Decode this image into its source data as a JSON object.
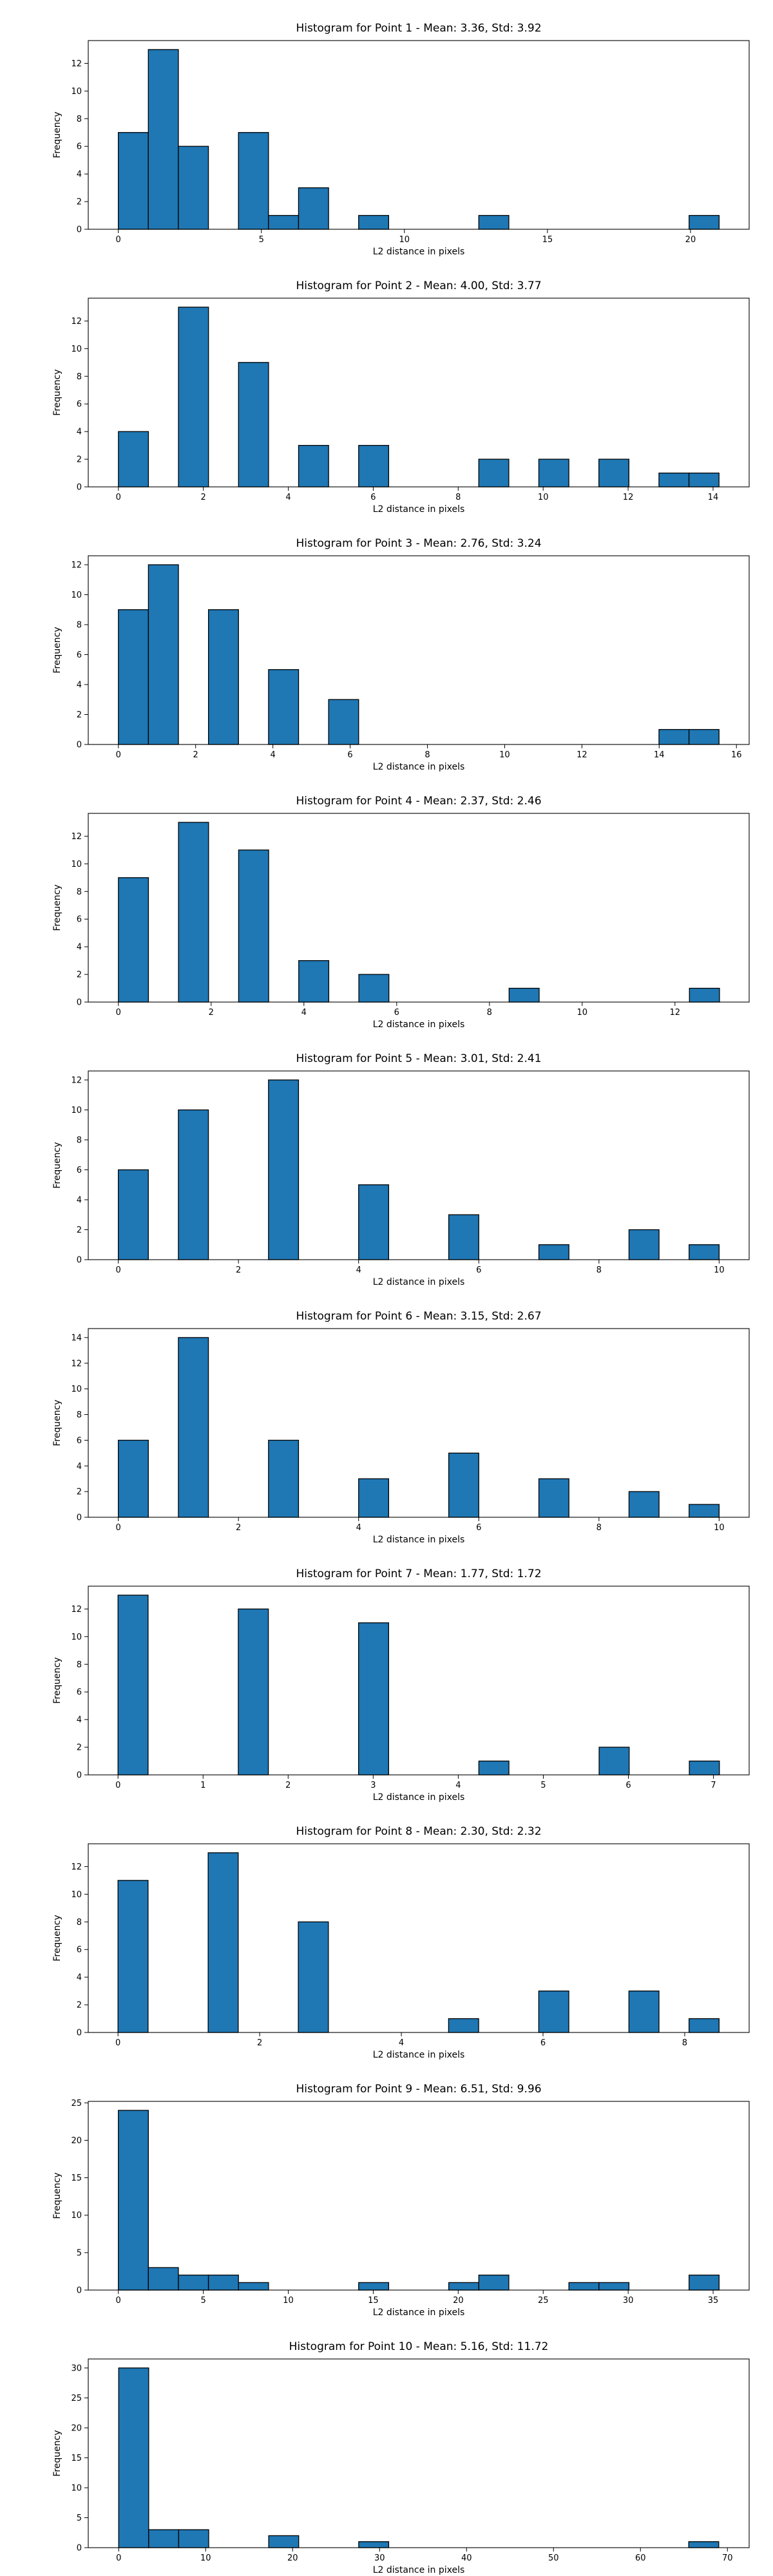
{
  "style": {
    "bar_color": "#1f77b4",
    "edge_color": "#000000"
  },
  "chart_data": [
    {
      "type": "bar",
      "title": "Histogram for Point 1 - Mean: 3.36, Std: 3.92",
      "xlabel": "L2 distance in pixels",
      "ylabel": "Frequency",
      "xlim": [
        -1.05,
        22.05
      ],
      "ylim": [
        0,
        13.65
      ],
      "xticks": [
        0,
        5,
        10,
        15,
        20
      ],
      "xtick_labels": [
        "0",
        "5",
        "10",
        "15",
        "20"
      ],
      "yticks": [
        0,
        2,
        4,
        6,
        8,
        10,
        12
      ],
      "ytick_labels": [
        "0",
        "2",
        "4",
        "6",
        "8",
        "10",
        "12"
      ],
      "bin_edges": [
        0.0,
        1.05,
        2.1,
        3.15,
        4.2,
        5.25,
        6.3,
        7.35,
        8.4,
        9.45,
        10.5,
        11.55,
        12.6,
        13.65,
        14.7,
        15.75,
        16.8,
        17.85,
        18.9,
        19.95,
        21.0
      ],
      "values": [
        7,
        13,
        6,
        0,
        7,
        1,
        3,
        0,
        1,
        0,
        0,
        0,
        1,
        0,
        0,
        0,
        0,
        0,
        0,
        1
      ]
    },
    {
      "type": "bar",
      "title": "Histogram for Point 2 - Mean: 4.00, Std: 3.77",
      "xlabel": "L2 distance in pixels",
      "ylabel": "Frequency",
      "xlim": [
        -0.71,
        14.85
      ],
      "ylim": [
        0,
        13.65
      ],
      "xticks": [
        0,
        2,
        4,
        6,
        8,
        10,
        12,
        14
      ],
      "xtick_labels": [
        "0",
        "2",
        "4",
        "6",
        "8",
        "10",
        "12",
        "14"
      ],
      "yticks": [
        0,
        2,
        4,
        6,
        8,
        10,
        12
      ],
      "ytick_labels": [
        "0",
        "2",
        "4",
        "6",
        "8",
        "10",
        "12"
      ],
      "bin_edges": [
        0.0,
        0.707,
        1.414,
        2.121,
        2.828,
        3.535,
        4.242,
        4.949,
        5.656,
        6.363,
        7.07,
        7.777,
        8.484,
        9.191,
        9.898,
        10.605,
        11.312,
        12.019,
        12.726,
        13.433,
        14.14
      ],
      "values": [
        4,
        0,
        13,
        0,
        9,
        0,
        3,
        0,
        3,
        0,
        0,
        0,
        2,
        0,
        2,
        0,
        2,
        0,
        1,
        1
      ]
    },
    {
      "type": "bar",
      "title": "Histogram for Point 3 - Mean: 2.76, Std: 3.24",
      "xlabel": "L2 distance in pixels",
      "ylabel": "Frequency",
      "xlim": [
        -0.78,
        16.33
      ],
      "ylim": [
        0,
        12.6
      ],
      "xticks": [
        0,
        2,
        4,
        6,
        8,
        10,
        12,
        14,
        16
      ],
      "xtick_labels": [
        "0",
        "2",
        "4",
        "6",
        "8",
        "10",
        "12",
        "14",
        "16"
      ],
      "yticks": [
        0,
        2,
        4,
        6,
        8,
        10,
        12
      ],
      "ytick_labels": [
        "0",
        "2",
        "4",
        "6",
        "8",
        "10",
        "12"
      ],
      "bin_edges": [
        0.0,
        0.7775,
        1.555,
        2.3325,
        3.11,
        3.8875,
        4.665,
        5.4425,
        6.22,
        6.9975,
        7.775,
        8.5525,
        9.33,
        10.1075,
        10.885,
        11.6625,
        12.44,
        13.2175,
        13.995,
        14.7725,
        15.55
      ],
      "values": [
        9,
        12,
        0,
        9,
        0,
        5,
        0,
        3,
        0,
        0,
        0,
        0,
        0,
        0,
        0,
        0,
        0,
        0,
        1,
        1
      ]
    },
    {
      "type": "bar",
      "title": "Histogram for Point 4 - Mean: 2.37, Std: 2.46",
      "xlabel": "L2 distance in pixels",
      "ylabel": "Frequency",
      "xlim": [
        -0.65,
        13.6
      ],
      "ylim": [
        0,
        13.65
      ],
      "xticks": [
        0,
        2,
        4,
        6,
        8,
        10,
        12
      ],
      "xtick_labels": [
        "0",
        "2",
        "4",
        "6",
        "8",
        "10",
        "12"
      ],
      "yticks": [
        0,
        2,
        4,
        6,
        8,
        10,
        12
      ],
      "ytick_labels": [
        "0",
        "2",
        "4",
        "6",
        "8",
        "10",
        "12"
      ],
      "bin_edges": [
        0.0,
        0.648,
        1.296,
        1.944,
        2.592,
        3.24,
        3.888,
        4.536,
        5.184,
        5.832,
        6.48,
        7.128,
        7.776,
        8.424,
        9.072,
        9.72,
        10.368,
        11.016,
        11.664,
        12.312,
        12.96
      ],
      "values": [
        9,
        0,
        13,
        0,
        11,
        0,
        3,
        0,
        2,
        0,
        0,
        0,
        0,
        1,
        0,
        0,
        0,
        0,
        0,
        1
      ]
    },
    {
      "type": "bar",
      "title": "Histogram for Point 5 - Mean: 3.01, Std: 2.41",
      "xlabel": "L2 distance in pixels",
      "ylabel": "Frequency",
      "xlim": [
        -0.5,
        10.5
      ],
      "ylim": [
        0,
        12.6
      ],
      "xticks": [
        0,
        2,
        4,
        6,
        8,
        10
      ],
      "xtick_labels": [
        "0",
        "2",
        "4",
        "6",
        "8",
        "10"
      ],
      "yticks": [
        0,
        2,
        4,
        6,
        8,
        10,
        12
      ],
      "ytick_labels": [
        "0",
        "2",
        "4",
        "6",
        "8",
        "10",
        "12"
      ],
      "bin_edges": [
        0.0,
        0.5,
        1.0,
        1.5,
        2.0,
        2.5,
        3.0,
        3.5,
        4.0,
        4.5,
        5.0,
        5.5,
        6.0,
        6.5,
        7.0,
        7.5,
        8.0,
        8.5,
        9.0,
        9.5,
        10.0
      ],
      "values": [
        6,
        0,
        10,
        0,
        0,
        12,
        0,
        0,
        5,
        0,
        0,
        3,
        0,
        0,
        1,
        0,
        0,
        2,
        0,
        1
      ]
    },
    {
      "type": "bar",
      "title": "Histogram for Point 6 - Mean: 3.15, Std: 2.67",
      "xlabel": "L2 distance in pixels",
      "ylabel": "Frequency",
      "xlim": [
        -0.5,
        10.5
      ],
      "ylim": [
        0,
        14.7
      ],
      "xticks": [
        0,
        2,
        4,
        6,
        8,
        10
      ],
      "xtick_labels": [
        "0",
        "2",
        "4",
        "6",
        "8",
        "10"
      ],
      "yticks": [
        0,
        2,
        4,
        6,
        8,
        10,
        12,
        14
      ],
      "ytick_labels": [
        "0",
        "2",
        "4",
        "6",
        "8",
        "10",
        "12",
        "14"
      ],
      "bin_edges": [
        0.0,
        0.5,
        1.0,
        1.5,
        2.0,
        2.5,
        3.0,
        3.5,
        4.0,
        4.5,
        5.0,
        5.5,
        6.0,
        6.5,
        7.0,
        7.5,
        8.0,
        8.5,
        9.0,
        9.5,
        10.0
      ],
      "values": [
        6,
        0,
        14,
        0,
        0,
        6,
        0,
        0,
        3,
        0,
        0,
        5,
        0,
        0,
        3,
        0,
        0,
        2,
        0,
        1
      ]
    },
    {
      "type": "bar",
      "title": "Histogram for Point 7 - Mean: 1.77, Std: 1.72",
      "xlabel": "L2 distance in pixels",
      "ylabel": "Frequency",
      "xlim": [
        -0.35,
        7.42
      ],
      "ylim": [
        0,
        13.65
      ],
      "xticks": [
        0,
        1,
        2,
        3,
        4,
        5,
        6,
        7
      ],
      "xtick_labels": [
        "0",
        "1",
        "2",
        "3",
        "4",
        "5",
        "6",
        "7"
      ],
      "yticks": [
        0,
        2,
        4,
        6,
        8,
        10,
        12
      ],
      "ytick_labels": [
        "0",
        "2",
        "4",
        "6",
        "8",
        "10",
        "12"
      ],
      "bin_edges": [
        0.0,
        0.3535,
        0.707,
        1.0605,
        1.414,
        1.7675,
        2.121,
        2.4745,
        2.828,
        3.1815,
        3.535,
        3.8885,
        4.242,
        4.5955,
        4.949,
        5.3025,
        5.656,
        6.0095,
        6.363,
        6.7165,
        7.07
      ],
      "values": [
        13,
        0,
        0,
        0,
        12,
        0,
        0,
        0,
        11,
        0,
        0,
        0,
        1,
        0,
        0,
        0,
        2,
        0,
        0,
        1
      ]
    },
    {
      "type": "bar",
      "title": "Histogram for Point 8 - Mean: 2.30, Std: 2.32",
      "xlabel": "L2 distance in pixels",
      "ylabel": "Frequency",
      "xlim": [
        -0.42,
        8.91
      ],
      "ylim": [
        0,
        13.65
      ],
      "xticks": [
        0,
        2,
        4,
        6,
        8
      ],
      "xtick_labels": [
        "0",
        "2",
        "4",
        "6",
        "8"
      ],
      "yticks": [
        0,
        2,
        4,
        6,
        8,
        10,
        12
      ],
      "ytick_labels": [
        "0",
        "2",
        "4",
        "6",
        "8",
        "10",
        "12"
      ],
      "bin_edges": [
        0.0,
        0.4243,
        0.8485,
        1.2728,
        1.6971,
        2.1213,
        2.5456,
        2.9698,
        3.3941,
        3.8184,
        4.2426,
        4.6669,
        5.0912,
        5.5154,
        5.9397,
        6.364,
        6.7882,
        7.2125,
        7.6368,
        8.061,
        8.4853
      ],
      "values": [
        11,
        0,
        0,
        13,
        0,
        0,
        8,
        0,
        0,
        0,
        0,
        1,
        0,
        0,
        3,
        0,
        0,
        3,
        0,
        1
      ]
    },
    {
      "type": "bar",
      "title": "Histogram for Point 9 - Mean: 6.51, Std: 9.96",
      "xlabel": "L2 distance in pixels",
      "ylabel": "Frequency",
      "xlim": [
        -1.77,
        37.12
      ],
      "ylim": [
        0,
        25.2
      ],
      "xticks": [
        0,
        5,
        10,
        15,
        20,
        25,
        30,
        35
      ],
      "xtick_labels": [
        "0",
        "5",
        "10",
        "15",
        "20",
        "25",
        "30",
        "35"
      ],
      "yticks": [
        0,
        5,
        10,
        15,
        20,
        25
      ],
      "ytick_labels": [
        "0",
        "5",
        "10",
        "15",
        "20",
        "25"
      ],
      "bin_edges": [
        0.0,
        1.7675,
        3.535,
        5.3025,
        7.07,
        8.8375,
        10.605,
        12.3725,
        14.14,
        15.9075,
        17.675,
        19.4425,
        21.21,
        22.9775,
        24.745,
        26.5125,
        28.28,
        30.0475,
        31.815,
        33.5825,
        35.35
      ],
      "values": [
        24,
        3,
        2,
        2,
        1,
        0,
        0,
        0,
        1,
        0,
        0,
        1,
        2,
        0,
        0,
        1,
        1,
        0,
        0,
        2
      ]
    },
    {
      "type": "bar",
      "title": "Histogram for Point 10 - Mean: 5.16, Std: 11.72",
      "xlabel": "L2 distance in pixels",
      "ylabel": "Frequency",
      "xlim": [
        -3.5,
        72.5
      ],
      "ylim": [
        0,
        31.5
      ],
      "xticks": [
        0,
        10,
        20,
        30,
        40,
        50,
        60,
        70
      ],
      "xtick_labels": [
        "0",
        "10",
        "20",
        "30",
        "40",
        "50",
        "60",
        "70"
      ],
      "yticks": [
        0,
        5,
        10,
        15,
        20,
        25,
        30
      ],
      "ytick_labels": [
        "0",
        "5",
        "10",
        "15",
        "20",
        "25",
        "30"
      ],
      "bin_edges": [
        0.0,
        3.45,
        6.9,
        10.35,
        13.8,
        17.25,
        20.7,
        24.15,
        27.6,
        31.05,
        34.5,
        37.95,
        41.4,
        44.85,
        48.3,
        51.75,
        55.2,
        58.65,
        62.1,
        65.55,
        69.0
      ],
      "values": [
        30,
        3,
        3,
        0,
        0,
        2,
        0,
        0,
        1,
        0,
        0,
        0,
        0,
        0,
        0,
        0,
        0,
        0,
        0,
        1
      ]
    }
  ]
}
